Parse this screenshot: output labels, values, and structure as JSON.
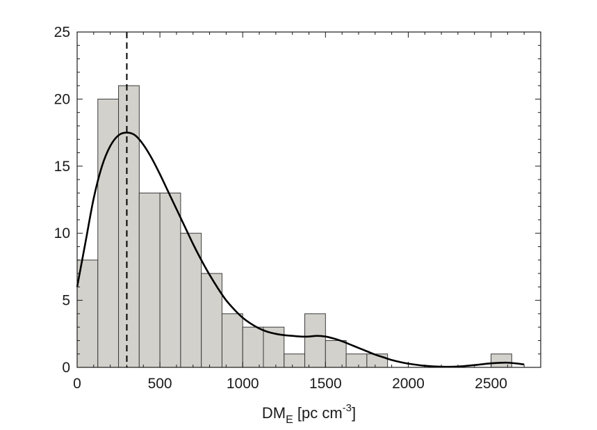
{
  "chart_data": {
    "type": "bar",
    "histogram": true,
    "bin_width": 125,
    "bins": [
      {
        "x0": 0,
        "x1": 125,
        "count": 8
      },
      {
        "x0": 125,
        "x1": 250,
        "count": 20
      },
      {
        "x0": 250,
        "x1": 375,
        "count": 21
      },
      {
        "x0": 375,
        "x1": 500,
        "count": 13
      },
      {
        "x0": 500,
        "x1": 625,
        "count": 13
      },
      {
        "x0": 625,
        "x1": 750,
        "count": 10
      },
      {
        "x0": 750,
        "x1": 875,
        "count": 7
      },
      {
        "x0": 875,
        "x1": 1000,
        "count": 4
      },
      {
        "x0": 1000,
        "x1": 1125,
        "count": 3
      },
      {
        "x0": 1125,
        "x1": 1250,
        "count": 3
      },
      {
        "x0": 1250,
        "x1": 1375,
        "count": 1
      },
      {
        "x0": 1375,
        "x1": 1500,
        "count": 4
      },
      {
        "x0": 1500,
        "x1": 1625,
        "count": 2
      },
      {
        "x0": 1625,
        "x1": 1750,
        "count": 1
      },
      {
        "x0": 1750,
        "x1": 1875,
        "count": 1
      },
      {
        "x0": 2500,
        "x1": 2625,
        "count": 1
      }
    ],
    "density_curve": {
      "x": [
        0,
        50,
        100,
        150,
        200,
        250,
        300,
        350,
        400,
        450,
        500,
        550,
        600,
        650,
        700,
        750,
        800,
        850,
        900,
        950,
        1000,
        1050,
        1100,
        1150,
        1200,
        1250,
        1300,
        1350,
        1400,
        1450,
        1500,
        1550,
        1600,
        1650,
        1700,
        1750,
        1800,
        1850,
        1900,
        1950,
        2000,
        2100,
        2200,
        2300,
        2400,
        2500,
        2600,
        2700
      ],
      "y": [
        6.0,
        9.3,
        12.6,
        15.0,
        16.5,
        17.3,
        17.5,
        17.3,
        16.6,
        15.6,
        14.4,
        13.1,
        11.8,
        10.5,
        9.2,
        8.0,
        6.9,
        5.9,
        5.0,
        4.3,
        3.7,
        3.25,
        2.9,
        2.65,
        2.5,
        2.4,
        2.35,
        2.3,
        2.3,
        2.35,
        2.3,
        2.15,
        1.95,
        1.7,
        1.45,
        1.2,
        0.95,
        0.75,
        0.55,
        0.4,
        0.28,
        0.12,
        0.05,
        0.06,
        0.17,
        0.3,
        0.35,
        0.22
      ]
    },
    "reference_line_x": 300,
    "xlabel": "DM",
    "xlabel_subscript": "E",
    "xlabel_units": " [pc cm",
    "xlabel_superscript": "-3",
    "xlabel_close": "]",
    "ylabel": "",
    "xlim": [
      0,
      2800
    ],
    "ylim": [
      0,
      25
    ],
    "xticks": [
      0,
      500,
      1000,
      1500,
      2000,
      2500
    ],
    "yticks": [
      0,
      5,
      10,
      15,
      20,
      25
    ],
    "grid": false,
    "colors": {
      "bar_fill": "#d3d1cb",
      "bar_edge": "#3a3a3a",
      "curve": "#000000",
      "axis": "#1a1a1a"
    }
  }
}
